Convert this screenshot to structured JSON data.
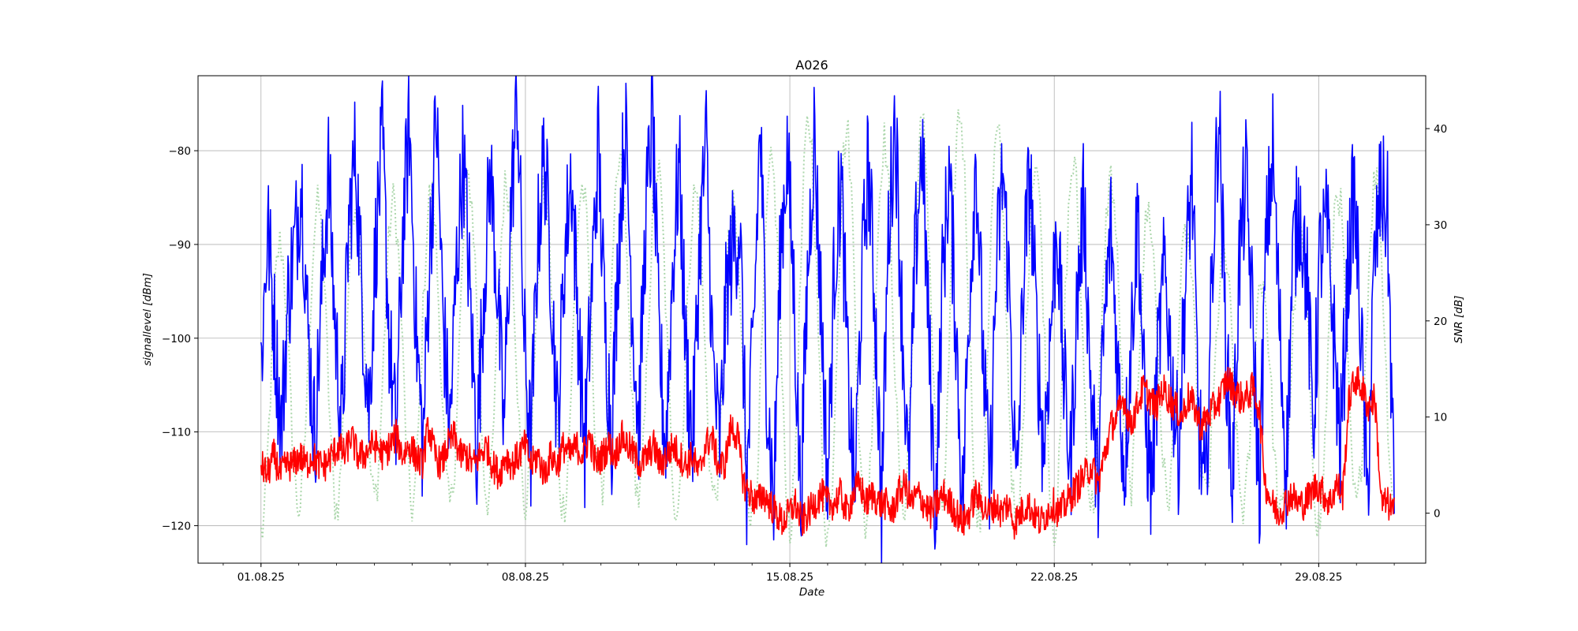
{
  "chart_data": {
    "type": "line",
    "title": "A026",
    "xlabel": "Date",
    "ylabel_left": "signallevel [dBm]",
    "ylabel_right": "SNR [dB]",
    "x_ticks": [
      "01.08.25",
      "08.08.25",
      "15.08.25",
      "22.08.25",
      "29.08.25"
    ],
    "x_range": [
      "2025-07-30 08:00",
      "2025-08-31 20:00"
    ],
    "y_left_ticks": [
      "−80",
      "−90",
      "−100",
      "−110",
      "−120"
    ],
    "y_left_range": [
      -124,
      -72
    ],
    "y_right_ticks": [
      "0",
      "10",
      "20",
      "30",
      "40"
    ],
    "y_right_range": [
      -5.2,
      45.5
    ],
    "grid": true,
    "colors": {
      "signal": "#0000ff",
      "signal_daily_fill": "#a8d5a8",
      "snr": "#ff0000"
    },
    "series": [
      {
        "axis": "left",
        "color": "#0000ff",
        "style": "solid",
        "sampling": "6h envelope (approx, min/max per quarter-day)",
        "x_start": "2025-08-01 00:00",
        "x_end": "2025-08-31 00:00",
        "values": [
          -103,
          -88,
          -99,
          -110,
          -96,
          -90,
          -83,
          -100,
          -111,
          -95,
          -82,
          -99,
          -110,
          -88,
          -80,
          -96,
          -108,
          -90,
          -79,
          -100,
          -111,
          -89,
          -77,
          -99,
          -112,
          -91,
          -76,
          -98,
          -110,
          -92,
          -80,
          -96,
          -112,
          -95,
          -82,
          -94,
          -110,
          -87,
          -74,
          -100,
          -112,
          -90,
          -80,
          -93,
          -110,
          -91,
          -82,
          -98,
          -112,
          -95,
          -79,
          -99,
          -110,
          -90,
          -77,
          -96,
          -110,
          -88,
          -76,
          -100,
          -112,
          -93,
          -81,
          -102,
          -111,
          -90,
          -79,
          -103,
          -112,
          -95,
          -90,
          -88,
          -116,
          -100,
          -77,
          -105,
          -118,
          -91,
          -80,
          -95,
          -118,
          -94,
          -78,
          -96,
          -116,
          -92,
          -83,
          -104,
          -117,
          -95,
          -81,
          -96,
          -118,
          -89,
          -76,
          -97,
          -116,
          -91,
          -79,
          -100,
          -119,
          -94,
          -82,
          -98,
          -118,
          -96,
          -80,
          -101,
          -117,
          -93,
          -82,
          -96,
          -118,
          -94,
          -82,
          -100,
          -112,
          -100,
          -87,
          -104,
          -114,
          -96,
          -85,
          -105,
          -116,
          -99,
          -88,
          -103,
          -114,
          -100,
          -86,
          -108,
          -116,
          -102,
          -92,
          -104,
          -112,
          -95,
          -82,
          -109,
          -118,
          -93,
          -75,
          -100,
          -116,
          -92,
          -83,
          -98,
          -117,
          -90,
          -80,
          -99,
          -114,
          -91,
          -86,
          -93,
          -110,
          -91,
          -88,
          -99,
          -112,
          -95,
          -84,
          -98,
          -118,
          -93,
          -84,
          -87,
          -118
        ]
      },
      {
        "axis": "left",
        "color": "#a8d5a8",
        "style": "dotted",
        "sampling": "daily envelope (approx, min/max band)",
        "x_start": "2025-08-01 00:00",
        "x_end": "2025-08-31 00:00",
        "lower": [
          -121,
          -118,
          -118,
          -117,
          -118,
          -118,
          -117,
          -118,
          -118,
          -116,
          -117,
          -118,
          -117,
          -119,
          -120,
          -121,
          -120,
          -118,
          -119,
          -120,
          -120,
          -120,
          -118,
          -116,
          -117,
          -117,
          -118,
          -119,
          -120,
          -118,
          -117
        ],
        "upper": [
          -92,
          -88,
          -84,
          -86,
          -85,
          -84,
          -83,
          -84,
          -85,
          -83,
          -80,
          -84,
          -85,
          -88,
          -76,
          -78,
          -78,
          -80,
          -75,
          -77,
          -80,
          -82,
          -81,
          -85,
          -88,
          -90,
          -92,
          -95,
          -84,
          -84,
          -82
        ]
      },
      {
        "axis": "right",
        "color": "#ff0000",
        "style": "solid",
        "sampling": "6h envelope (approx)",
        "x_start": "2025-08-01 00:00",
        "x_end": "2025-08-31 00:00",
        "values": [
          5,
          4,
          6,
          4,
          5,
          5,
          6,
          5,
          6,
          5,
          5,
          6,
          7,
          6,
          8,
          6,
          6,
          7,
          7,
          6,
          7,
          8,
          6,
          7,
          6,
          5,
          9,
          6,
          5,
          7,
          8,
          6,
          6,
          5,
          6,
          7,
          5,
          4,
          6,
          5,
          6,
          7,
          5,
          6,
          4,
          6,
          5,
          7,
          6,
          7,
          6,
          8,
          5,
          6,
          7,
          6,
          8,
          7,
          6,
          5,
          6,
          7,
          5,
          6,
          7,
          6,
          5,
          6,
          4,
          7,
          8,
          5,
          5,
          9,
          8,
          3,
          2,
          1,
          2,
          1,
          0,
          -1,
          0,
          1,
          -1,
          0,
          1,
          2,
          1,
          1,
          2,
          0,
          2,
          3,
          1,
          2,
          1,
          1,
          0,
          2,
          3,
          1,
          2,
          1,
          0,
          1,
          2,
          1,
          0,
          -1,
          0,
          2,
          1,
          0,
          1,
          0,
          1,
          -1,
          0,
          1,
          0,
          -1,
          0,
          1,
          0,
          1,
          2,
          3,
          4,
          5,
          3,
          6,
          9,
          10,
          12,
          9,
          11,
          13,
          12,
          11,
          13,
          12,
          11,
          10,
          12,
          11,
          9,
          10,
          11,
          12,
          14,
          13,
          12,
          12,
          13,
          11,
          3,
          1,
          0,
          1,
          2,
          1,
          1,
          2,
          3,
          2,
          1,
          3,
          2,
          12,
          14,
          13,
          11,
          12,
          1,
          1,
          0
        ]
      }
    ]
  }
}
